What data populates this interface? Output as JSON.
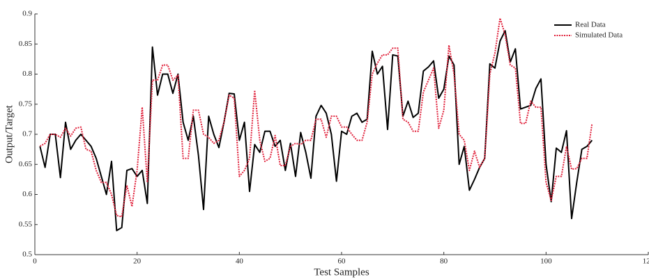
{
  "chart_data": {
    "type": "line",
    "xlabel": "Test Samples",
    "ylabel": "Output/Target",
    "x": [
      1,
      2,
      3,
      4,
      5,
      6,
      7,
      8,
      9,
      10,
      11,
      12,
      13,
      14,
      15,
      16,
      17,
      18,
      19,
      20,
      21,
      22,
      23,
      24,
      25,
      26,
      27,
      28,
      29,
      30,
      31,
      32,
      33,
      34,
      35,
      36,
      37,
      38,
      39,
      40,
      41,
      42,
      43,
      44,
      45,
      46,
      47,
      48,
      49,
      50,
      51,
      52,
      53,
      54,
      55,
      56,
      57,
      58,
      59,
      60,
      61,
      62,
      63,
      64,
      65,
      66,
      67,
      68,
      69,
      70,
      71,
      72,
      73,
      74,
      75,
      76,
      77,
      78,
      79,
      80,
      81,
      82,
      83,
      84,
      85,
      86,
      87,
      88,
      89,
      90,
      91,
      92,
      93,
      94,
      95,
      96,
      97,
      98,
      99,
      100,
      101,
      102,
      103,
      104,
      105,
      106,
      107,
      108,
      109
    ],
    "series": [
      {
        "name": "Real Data",
        "color": "#000000",
        "style": "solid",
        "values": [
          0.68,
          0.645,
          0.7,
          0.7,
          0.628,
          0.72,
          0.675,
          0.69,
          0.7,
          0.69,
          0.68,
          0.66,
          0.63,
          0.6,
          0.655,
          0.54,
          0.545,
          0.64,
          0.643,
          0.63,
          0.64,
          0.585,
          0.845,
          0.765,
          0.8,
          0.8,
          0.768,
          0.8,
          0.72,
          0.69,
          0.73,
          0.665,
          0.575,
          0.73,
          0.7,
          0.678,
          0.72,
          0.768,
          0.767,
          0.69,
          0.72,
          0.605,
          0.683,
          0.67,
          0.705,
          0.705,
          0.68,
          0.69,
          0.64,
          0.685,
          0.63,
          0.703,
          0.67,
          0.627,
          0.73,
          0.748,
          0.735,
          0.7,
          0.622,
          0.705,
          0.7,
          0.73,
          0.735,
          0.72,
          0.725,
          0.838,
          0.8,
          0.813,
          0.708,
          0.832,
          0.83,
          0.73,
          0.755,
          0.728,
          0.735,
          0.805,
          0.812,
          0.822,
          0.76,
          0.775,
          0.83,
          0.815,
          0.65,
          0.68,
          0.607,
          0.625,
          0.645,
          0.66,
          0.817,
          0.81,
          0.855,
          0.872,
          0.82,
          0.842,
          0.742,
          0.745,
          0.748,
          0.776,
          0.792,
          0.65,
          0.588,
          0.677,
          0.67,
          0.706,
          0.56,
          0.62,
          0.675,
          0.68,
          0.69
        ]
      },
      {
        "name": "Simulated Data",
        "color": "#e0203a",
        "style": "dotted",
        "values": [
          0.68,
          0.685,
          0.7,
          0.7,
          0.695,
          0.71,
          0.697,
          0.71,
          0.712,
          0.675,
          0.672,
          0.64,
          0.62,
          0.62,
          0.6,
          0.565,
          0.563,
          0.615,
          0.58,
          0.64,
          0.745,
          0.62,
          0.79,
          0.79,
          0.815,
          0.815,
          0.79,
          0.798,
          0.66,
          0.66,
          0.74,
          0.74,
          0.7,
          0.695,
          0.685,
          0.69,
          0.72,
          0.765,
          0.76,
          0.63,
          0.64,
          0.66,
          0.773,
          0.69,
          0.655,
          0.66,
          0.698,
          0.648,
          0.648,
          0.68,
          0.685,
          0.683,
          0.69,
          0.69,
          0.725,
          0.725,
          0.695,
          0.73,
          0.73,
          0.712,
          0.712,
          0.7,
          0.69,
          0.69,
          0.72,
          0.8,
          0.818,
          0.832,
          0.832,
          0.843,
          0.843,
          0.725,
          0.72,
          0.705,
          0.705,
          0.77,
          0.79,
          0.81,
          0.71,
          0.74,
          0.848,
          0.8,
          0.7,
          0.69,
          0.64,
          0.672,
          0.645,
          0.66,
          0.8,
          0.835,
          0.893,
          0.865,
          0.815,
          0.81,
          0.718,
          0.718,
          0.755,
          0.745,
          0.745,
          0.62,
          0.59,
          0.63,
          0.63,
          0.68,
          0.642,
          0.643,
          0.66,
          0.66,
          0.718
        ]
      }
    ],
    "xlim": [
      0,
      120
    ],
    "xticks": [
      0,
      20,
      40,
      60,
      80,
      100,
      120
    ],
    "ylim": [
      0.5,
      0.9
    ],
    "yticks": [
      0.5,
      0.55,
      0.6,
      0.65,
      0.7,
      0.75,
      0.8,
      0.85,
      0.9
    ],
    "legend": "upper right",
    "grid": false
  }
}
